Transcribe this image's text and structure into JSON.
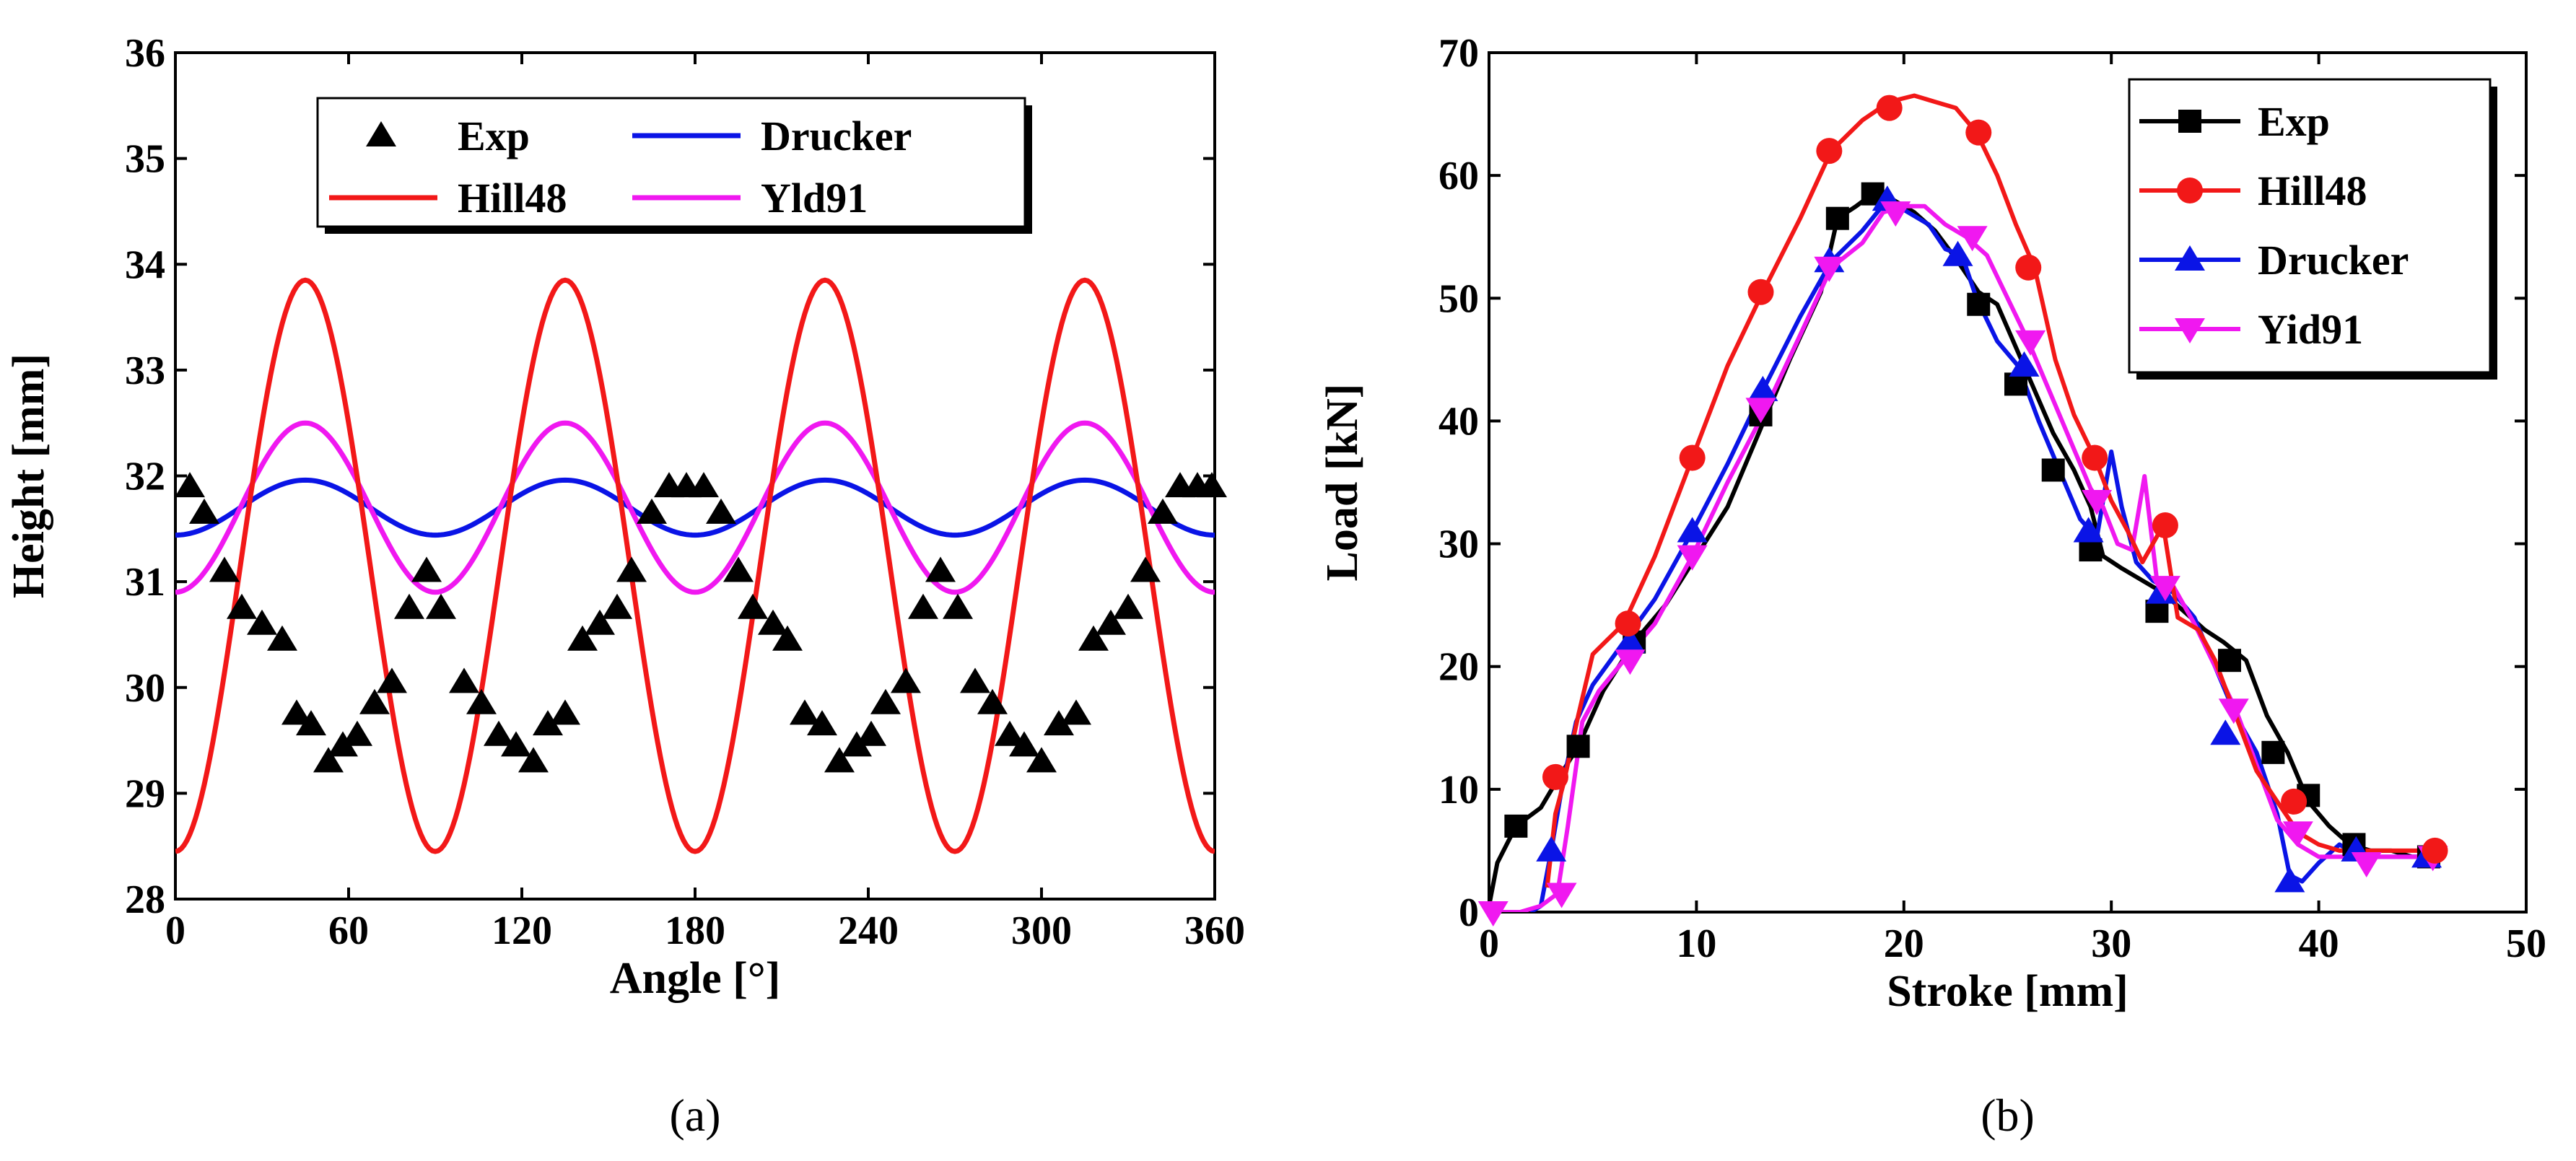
{
  "chart_data": [
    {
      "type": "line",
      "caption": "(a)",
      "xlabel": "Angle [°]",
      "ylabel": "Height [mm]",
      "xlim": [
        0,
        360
      ],
      "ylim": [
        28,
        36
      ],
      "xticks": [
        0,
        60,
        120,
        180,
        240,
        300,
        360
      ],
      "yticks": [
        28,
        29,
        30,
        31,
        32,
        33,
        34,
        35,
        36
      ],
      "legend": {
        "position": "top-center",
        "columns": 2
      },
      "series": [
        {
          "name": "Exp",
          "kind": "scatter",
          "marker": "triangle-up",
          "color": "#000000",
          "x": [
            5,
            10,
            17,
            23,
            30,
            37,
            42,
            47,
            53,
            58,
            63,
            69,
            75,
            81,
            87,
            92,
            100,
            106,
            112,
            118,
            124,
            129,
            135,
            141,
            147,
            153,
            158,
            165,
            171,
            177,
            183,
            189,
            195,
            200,
            207,
            212,
            218,
            224,
            230,
            236,
            241,
            246,
            253,
            259,
            265,
            271,
            277,
            283,
            289,
            294,
            300,
            306,
            312,
            318,
            324,
            330,
            336,
            342,
            348,
            354,
            359
          ],
          "y": [
            31.9,
            31.65,
            31.1,
            30.75,
            30.6,
            30.45,
            29.75,
            29.65,
            29.3,
            29.45,
            29.55,
            29.85,
            30.05,
            30.75,
            31.1,
            30.75,
            30.05,
            29.85,
            29.55,
            29.45,
            29.3,
            29.65,
            29.75,
            30.45,
            30.6,
            30.75,
            31.1,
            31.65,
            31.9,
            31.9,
            31.9,
            31.65,
            31.1,
            30.75,
            30.6,
            30.45,
            29.75,
            29.65,
            29.3,
            29.45,
            29.55,
            29.85,
            30.05,
            30.75,
            31.1,
            30.75,
            30.05,
            29.85,
            29.55,
            29.45,
            29.3,
            29.65,
            29.75,
            30.45,
            30.6,
            30.75,
            31.1,
            31.65,
            31.9,
            31.9,
            31.9
          ]
        },
        {
          "name": "Drucker",
          "kind": "line",
          "color": "#0a14e6",
          "formula": "31.7 - 0.26*cos(4*angle)",
          "mean": 31.7,
          "amplitude": 0.26
        },
        {
          "name": "Hill48",
          "kind": "line",
          "color": "#f21818",
          "formula": "31.15 - 2.7*cos(4*angle)",
          "mean": 31.15,
          "amplitude": 2.7,
          "min": 28.45,
          "max": 33.85
        },
        {
          "name": "Yld91",
          "kind": "line",
          "color": "#f018f0",
          "formula": "31.7 - 0.8*cos(4*angle)",
          "mean": 31.7,
          "amplitude": 0.8,
          "min": 30.9,
          "max": 32.5
        }
      ]
    },
    {
      "type": "line",
      "caption": "(b)",
      "xlabel": "Stroke [mm]",
      "ylabel": "Load [kN]",
      "xlim": [
        0,
        50
      ],
      "ylim": [
        0,
        70
      ],
      "xticks": [
        0,
        10,
        20,
        30,
        40,
        50
      ],
      "yticks": [
        0,
        10,
        20,
        30,
        40,
        50,
        60,
        70
      ],
      "legend": {
        "position": "top-right",
        "columns": 1
      },
      "series": [
        {
          "name": "Exp",
          "marker": "square",
          "color": "#000000",
          "x": [
            0,
            0.4,
            1.3,
            2.5,
            3.2,
            4.3,
            5.5,
            7.0,
            8.5,
            10.0,
            11.5,
            13.0,
            14.5,
            16.0,
            16.8,
            17.7,
            18.5,
            19.5,
            20.5,
            21.5,
            22.6,
            23.6,
            24.5,
            25.4,
            26.3,
            27.2,
            28.2,
            29.0,
            29.6,
            30.5,
            31.5,
            32.5,
            33.5,
            34.5,
            35.4,
            36.5,
            37.5,
            38.5,
            39.5,
            40.5,
            41.5,
            42.5,
            43.5,
            44.5,
            45.5
          ],
          "y": [
            0.5,
            4,
            7,
            8.5,
            10.5,
            13.5,
            18,
            22,
            25,
            29,
            33,
            39,
            45,
            50.5,
            56.5,
            57.5,
            58.5,
            58,
            57,
            55.5,
            53,
            50.5,
            49.5,
            46,
            42.5,
            39,
            36,
            33,
            29,
            28,
            27,
            26,
            24.5,
            23,
            22,
            20.5,
            16,
            13,
            9,
            7,
            5.5,
            5,
            5,
            4.5,
            4.5
          ],
          "markers_x": [
            1.3,
            4.3,
            7.0,
            13.1,
            16.8,
            18.5,
            23.6,
            25.4,
            27.2,
            29.0,
            32.2,
            35.7,
            37.8,
            39.5,
            41.7,
            45.3
          ],
          "markers_y": [
            7,
            13.5,
            22,
            40.5,
            56.5,
            58.5,
            49.5,
            43,
            36,
            29.5,
            24.5,
            20.5,
            13,
            9.5,
            5.5,
            4.5
          ]
        },
        {
          "name": "Hill48",
          "marker": "circle",
          "color": "#f21818",
          "x": [
            2.8,
            3.2,
            3.6,
            4.3,
            5.0,
            6.5,
            8.0,
            9.8,
            11.5,
            13.2,
            15.0,
            16.5,
            18.0,
            19.3,
            20.5,
            21.5,
            22.5,
            23.5,
            24.5,
            25.4,
            26.3,
            27.3,
            28.2,
            29.2,
            30.0,
            30.8,
            31.5,
            32.5,
            33.2,
            34.2,
            35.0,
            36.0,
            37.0,
            38.0,
            39.0,
            40.0,
            41.0,
            42.5,
            43.5,
            44.5,
            45.5
          ],
          "y": [
            2,
            8,
            10.5,
            16,
            21,
            23.5,
            29,
            37,
            44.5,
            50.5,
            56.5,
            62,
            64.5,
            66,
            66.5,
            66,
            65.5,
            63.5,
            60,
            56,
            52.5,
            45,
            40.5,
            37,
            33.5,
            31,
            28.5,
            31.5,
            24,
            23,
            20.5,
            16,
            11.5,
            9,
            6.5,
            5.5,
            5,
            5,
            5,
            5,
            5
          ],
          "markers_x": [
            3.2,
            6.7,
            9.8,
            13.1,
            16.4,
            19.3,
            23.6,
            26.0,
            29.2,
            32.6,
            38.8,
            45.6
          ],
          "markers_y": [
            11,
            23.5,
            37,
            50.5,
            62,
            65.5,
            63.5,
            52.5,
            37,
            31.5,
            9,
            5
          ]
        },
        {
          "name": "Drucker",
          "marker": "triangle-up",
          "color": "#0a14e6",
          "x": [
            2.0,
            2.5,
            3.0,
            3.5,
            4.2,
            5.0,
            6.5,
            8.0,
            9.8,
            11.5,
            13.2,
            15.0,
            16.5,
            18.0,
            19.2,
            20.2,
            21.2,
            22.0,
            22.8,
            23.5,
            24.5,
            25.5,
            26.5,
            27.5,
            28.5,
            29.3,
            30.0,
            30.5,
            31.2,
            32.0,
            33.0,
            34.0,
            35.0,
            36.0,
            37.0,
            38.0,
            38.6,
            39.2,
            40.0,
            41.0,
            42.0,
            43.0,
            44.0,
            45.5
          ],
          "y": [
            0,
            0.5,
            5,
            10,
            15.5,
            18.5,
            22,
            25.5,
            31,
            36.5,
            42.5,
            48.5,
            53,
            55.5,
            58,
            57,
            56,
            54,
            53.5,
            50,
            46.5,
            44.5,
            40,
            36,
            32,
            30.5,
            37.5,
            33,
            28.5,
            27,
            26,
            24,
            20,
            16,
            13,
            8,
            3,
            2.5,
            4,
            5.5,
            4.5,
            4.5,
            4.5,
            4.5
          ],
          "markers_x": [
            3.0,
            6.8,
            9.8,
            13.2,
            16.4,
            19.2,
            22.6,
            25.8,
            28.9,
            32.4,
            35.5,
            38.6,
            41.8,
            45.2
          ],
          "markers_y": [
            5,
            22,
            31,
            42.5,
            53,
            58,
            53.5,
            44.5,
            31,
            26,
            14.5,
            2.5,
            5,
            4.5
          ]
        },
        {
          "name": "Yid91",
          "marker": "triangle-down",
          "color": "#f018f0",
          "x": [
            0,
            1.5,
            2.5,
            3.3,
            3.8,
            4.5,
            5.3,
            6.5,
            8.0,
            9.8,
            11.5,
            13.2,
            15.0,
            16.5,
            18.0,
            19.0,
            20.0,
            21.0,
            22.0,
            23.0,
            24.0,
            25.0,
            26.0,
            27.0,
            28.0,
            29.0,
            29.6,
            30.3,
            31.0,
            31.6,
            32.2,
            33.0,
            34.0,
            35.0,
            36.0,
            37.0,
            38.0,
            39.0,
            40.0,
            41.0,
            42.0,
            43.0,
            44.0,
            45.5
          ],
          "y": [
            0,
            0,
            0.5,
            1.5,
            7,
            15.5,
            18,
            20.5,
            23.5,
            29,
            35,
            40.5,
            47,
            52.5,
            54.5,
            57,
            57.5,
            57.5,
            56,
            55,
            53.5,
            50,
            46.5,
            42.5,
            38.5,
            34.5,
            33,
            30,
            29.5,
            35.5,
            27,
            26.5,
            23.5,
            20,
            16.5,
            12,
            7.5,
            5.5,
            4.5,
            4.5,
            4.5,
            4.5,
            4.5,
            4.5
          ],
          "markers_x": [
            0.2,
            3.5,
            6.8,
            9.8,
            13.1,
            16.4,
            19.6,
            23.3,
            26.1,
            29.3,
            32.6,
            35.9,
            39.0,
            42.3,
            45.5
          ],
          "markers_y": [
            0,
            1.5,
            20.5,
            29,
            41,
            52.5,
            57,
            55,
            46.5,
            33.5,
            26.5,
            16.5,
            6.5,
            4,
            4.5
          ]
        }
      ]
    }
  ]
}
